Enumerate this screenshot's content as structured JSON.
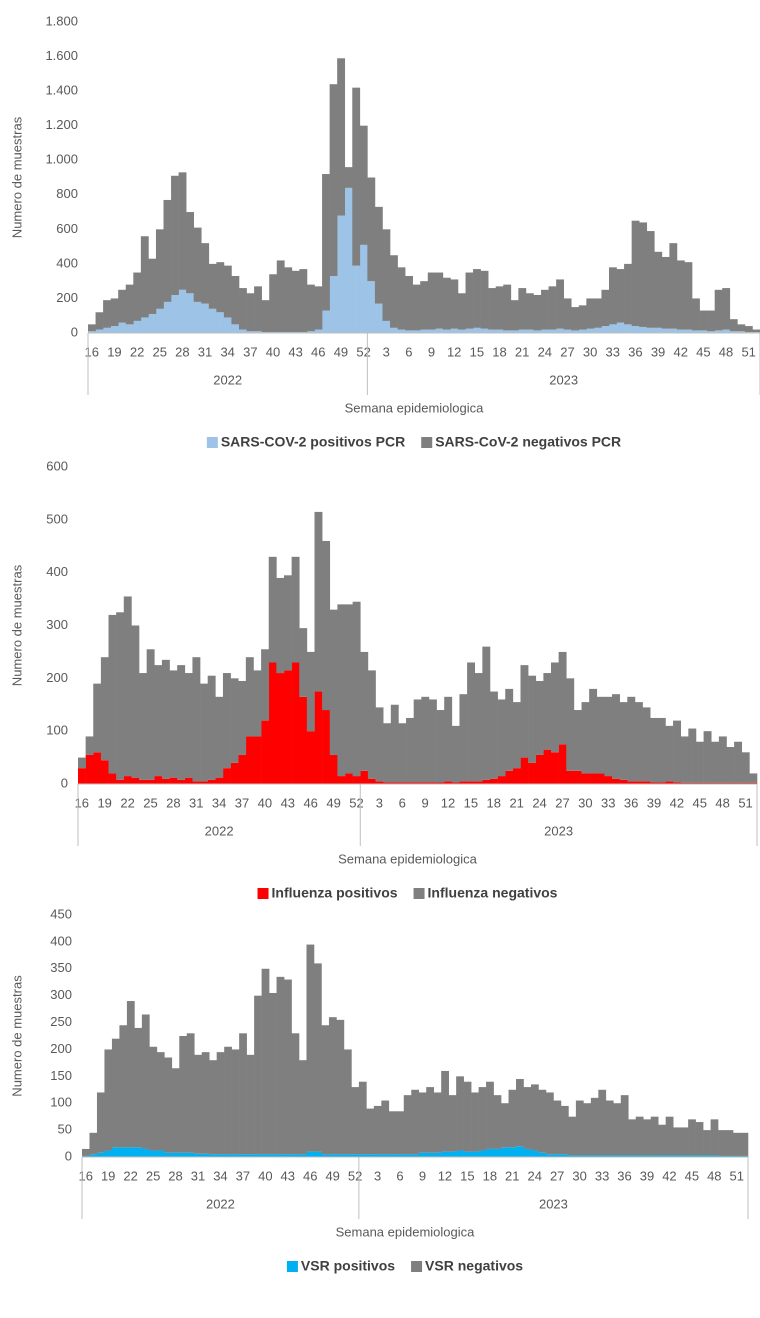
{
  "chart_data": [
    {
      "type": "bar",
      "stacked": true,
      "legend": "bottom",
      "grid": false,
      "y_label": "Numero de muestras",
      "x_label": "Semana epidemiologica",
      "groups": [
        "2022",
        "2023"
      ],
      "categories": [
        "16",
        null,
        null,
        "19",
        null,
        null,
        "22",
        null,
        null,
        "25",
        null,
        null,
        "28",
        null,
        null,
        "31",
        null,
        null,
        "34",
        null,
        null,
        "37",
        null,
        null,
        "40",
        null,
        null,
        "43",
        null,
        null,
        "46",
        null,
        null,
        "49",
        null,
        null,
        "52",
        null,
        null,
        "3",
        null,
        null,
        "6",
        null,
        null,
        "9",
        null,
        null,
        "12",
        null,
        null,
        "15",
        null,
        null,
        "18",
        null,
        null,
        "21",
        null,
        null,
        "24",
        null,
        null,
        "27",
        null,
        null,
        "30",
        null,
        null,
        "33",
        null,
        null,
        "36",
        null,
        null,
        "39",
        null,
        null,
        "42",
        null,
        null,
        "45",
        null,
        null,
        "48",
        null,
        null,
        "51",
        null
      ],
      "ylim": [
        0,
        1800
      ],
      "yticks": [
        0,
        200,
        400,
        600,
        800,
        {
          "value": 1000,
          "label": "1.000"
        },
        {
          "value": 1200,
          "label": "1.200"
        },
        {
          "value": 1400,
          "label": "1.400"
        },
        {
          "value": 1600,
          "label": "1.600"
        },
        {
          "value": 1800,
          "label": "1.800"
        }
      ],
      "series": [
        {
          "name": "SARS-COV-2 positivos PCR",
          "color": "#9dc3e6",
          "values": [
            10,
            20,
            30,
            40,
            60,
            50,
            70,
            90,
            110,
            140,
            180,
            220,
            250,
            230,
            180,
            170,
            140,
            120,
            90,
            50,
            20,
            10,
            10,
            5,
            5,
            5,
            5,
            5,
            5,
            10,
            20,
            130,
            330,
            680,
            840,
            390,
            510,
            300,
            170,
            70,
            30,
            20,
            15,
            15,
            20,
            20,
            25,
            20,
            25,
            20,
            25,
            30,
            25,
            20,
            20,
            15,
            15,
            20,
            20,
            15,
            20,
            20,
            25,
            20,
            15,
            20,
            25,
            30,
            40,
            50,
            60,
            50,
            40,
            35,
            30,
            30,
            25,
            25,
            20,
            20,
            15,
            15,
            10,
            15,
            20,
            10,
            10,
            5,
            5
          ]
        },
        {
          "name": "SARS-CoV-2 negativos PCR",
          "color": "#7f7f7f",
          "values": [
            40,
            100,
            160,
            160,
            190,
            230,
            280,
            470,
            320,
            460,
            590,
            690,
            680,
            470,
            430,
            350,
            260,
            290,
            300,
            280,
            240,
            220,
            260,
            185,
            335,
            415,
            375,
            355,
            365,
            270,
            250,
            790,
            1110,
            910,
            120,
            1030,
            690,
            600,
            560,
            530,
            420,
            360,
            315,
            265,
            280,
            330,
            325,
            300,
            285,
            210,
            325,
            340,
            335,
            240,
            250,
            265,
            175,
            240,
            210,
            205,
            230,
            250,
            285,
            180,
            135,
            140,
            175,
            170,
            210,
            330,
            310,
            350,
            610,
            605,
            560,
            440,
            415,
            495,
            400,
            390,
            185,
            115,
            120,
            235,
            240,
            70,
            40,
            35,
            15
          ]
        }
      ]
    },
    {
      "type": "bar",
      "stacked": true,
      "legend": "bottom",
      "grid": false,
      "y_label": "Numero de muestras",
      "x_label": "Semana epidemiologica",
      "groups": [
        "2022",
        "2023"
      ],
      "categories": [
        "16",
        null,
        null,
        "19",
        null,
        null,
        "22",
        null,
        null,
        "25",
        null,
        null,
        "28",
        null,
        null,
        "31",
        null,
        null,
        "34",
        null,
        null,
        "37",
        null,
        null,
        "40",
        null,
        null,
        "43",
        null,
        null,
        "46",
        null,
        null,
        "49",
        null,
        null,
        "52",
        null,
        null,
        "3",
        null,
        null,
        "6",
        null,
        null,
        "9",
        null,
        null,
        "12",
        null,
        null,
        "15",
        null,
        null,
        "18",
        null,
        null,
        "21",
        null,
        null,
        "24",
        null,
        null,
        "27",
        null,
        null,
        "30",
        null,
        null,
        "33",
        null,
        null,
        "36",
        null,
        null,
        "39",
        null,
        null,
        "42",
        null,
        null,
        "45",
        null,
        null,
        "48",
        null,
        null,
        "51",
        null
      ],
      "ylim": [
        0,
        600
      ],
      "yticks": [
        0,
        100,
        200,
        300,
        400,
        500,
        600
      ],
      "series": [
        {
          "name": "Influenza positivos",
          "color": "#ff0000",
          "values": [
            30,
            55,
            60,
            45,
            20,
            8,
            15,
            12,
            8,
            8,
            15,
            10,
            12,
            8,
            12,
            5,
            5,
            8,
            12,
            30,
            40,
            55,
            90,
            90,
            120,
            230,
            210,
            215,
            230,
            165,
            100,
            175,
            140,
            55,
            15,
            20,
            15,
            25,
            10,
            5,
            3,
            3,
            3,
            3,
            3,
            3,
            3,
            3,
            5,
            3,
            5,
            5,
            5,
            8,
            10,
            15,
            25,
            30,
            50,
            40,
            55,
            65,
            60,
            75,
            25,
            25,
            20,
            20,
            20,
            15,
            10,
            8,
            5,
            5,
            5,
            3,
            3,
            5,
            3,
            2,
            2,
            2,
            2,
            2,
            2,
            2,
            2,
            2,
            2
          ]
        },
        {
          "name": "Influenza negativos",
          "color": "#7f7f7f",
          "values": [
            20,
            35,
            130,
            195,
            300,
            317,
            340,
            288,
            202,
            247,
            210,
            225,
            203,
            217,
            198,
            235,
            185,
            197,
            153,
            180,
            160,
            140,
            150,
            125,
            135,
            200,
            180,
            180,
            200,
            130,
            150,
            340,
            320,
            275,
            325,
            320,
            330,
            225,
            205,
            140,
            112,
            147,
            112,
            122,
            157,
            162,
            157,
            137,
            160,
            107,
            165,
            225,
            205,
            252,
            165,
            145,
            155,
            125,
            175,
            165,
            140,
            145,
            170,
            175,
            175,
            115,
            135,
            160,
            145,
            150,
            160,
            147,
            160,
            150,
            140,
            122,
            122,
            105,
            117,
            88,
            103,
            78,
            98,
            78,
            88,
            68,
            78,
            58,
            18
          ]
        }
      ]
    },
    {
      "type": "bar",
      "stacked": true,
      "legend": "bottom",
      "grid": false,
      "y_label": "Numero de muestras",
      "x_label": "Semana epidemiologica",
      "groups": [
        "2022",
        "2023"
      ],
      "categories": [
        "16",
        null,
        null,
        "19",
        null,
        null,
        "22",
        null,
        null,
        "25",
        null,
        null,
        "28",
        null,
        null,
        "31",
        null,
        null,
        "34",
        null,
        null,
        "37",
        null,
        null,
        "40",
        null,
        null,
        "43",
        null,
        null,
        "46",
        null,
        null,
        "49",
        null,
        null,
        "52",
        null,
        null,
        "3",
        null,
        null,
        "6",
        null,
        null,
        "9",
        null,
        null,
        "12",
        null,
        null,
        "15",
        null,
        null,
        "18",
        null,
        null,
        "21",
        null,
        null,
        "24",
        null,
        null,
        "27",
        null,
        null,
        "30",
        null,
        null,
        "33",
        null,
        null,
        "36",
        null,
        null,
        "39",
        null,
        null,
        "42",
        null,
        null,
        "45",
        null,
        null,
        "48",
        null,
        null,
        "51",
        null
      ],
      "ylim": [
        0,
        450
      ],
      "yticks": [
        0,
        50,
        100,
        150,
        200,
        250,
        300,
        350,
        400,
        450
      ],
      "series": [
        {
          "name": "VSR positivos",
          "color": "#00b0f0",
          "values": [
            2,
            5,
            8,
            12,
            18,
            18,
            18,
            18,
            15,
            12,
            12,
            8,
            8,
            8,
            8,
            6,
            6,
            5,
            5,
            5,
            5,
            5,
            5,
            5,
            5,
            5,
            5,
            5,
            5,
            5,
            10,
            10,
            5,
            5,
            5,
            5,
            5,
            5,
            5,
            5,
            5,
            5,
            5,
            5,
            5,
            8,
            8,
            8,
            10,
            10,
            12,
            10,
            10,
            12,
            15,
            15,
            18,
            18,
            20,
            15,
            12,
            8,
            5,
            5,
            5,
            3,
            3,
            3,
            3,
            3,
            3,
            3,
            3,
            3,
            3,
            3,
            3,
            3,
            3,
            3,
            3,
            3,
            3,
            3,
            3,
            2,
            2,
            2,
            2
          ]
        },
        {
          "name": "VSR negativos",
          "color": "#7f7f7f",
          "values": [
            13,
            40,
            112,
            188,
            202,
            227,
            272,
            222,
            250,
            193,
            183,
            177,
            157,
            217,
            222,
            184,
            189,
            175,
            190,
            200,
            195,
            225,
            185,
            295,
            345,
            300,
            330,
            325,
            225,
            175,
            385,
            350,
            240,
            255,
            250,
            195,
            125,
            135,
            85,
            90,
            100,
            80,
            80,
            110,
            120,
            112,
            122,
            112,
            150,
            105,
            138,
            130,
            110,
            118,
            125,
            100,
            82,
            107,
            125,
            115,
            123,
            117,
            115,
            100,
            90,
            72,
            102,
            97,
            107,
            122,
            102,
            97,
            112,
            67,
            72,
            67,
            72,
            57,
            72,
            52,
            52,
            67,
            62,
            47,
            67,
            48,
            48,
            43,
            43
          ]
        }
      ]
    }
  ]
}
